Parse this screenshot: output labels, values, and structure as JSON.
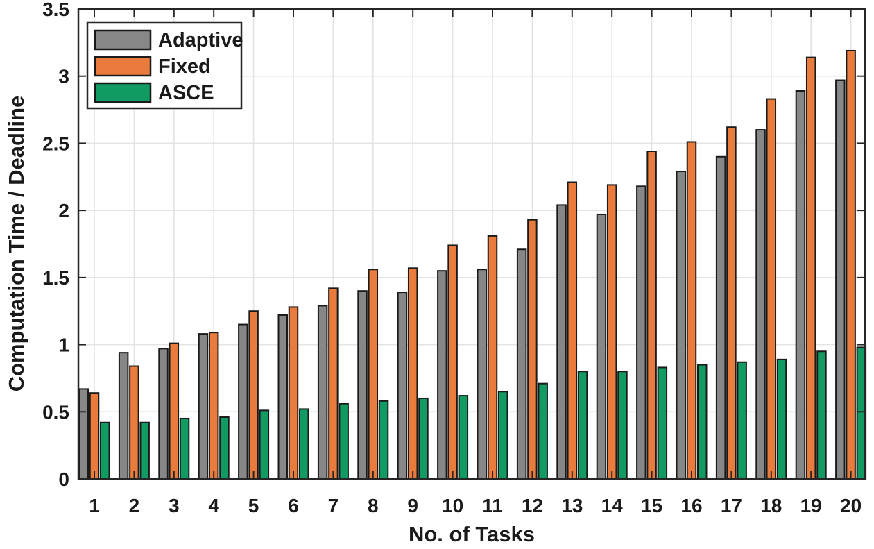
{
  "figure": {
    "background": "#ffffff"
  },
  "chart_data": {
    "type": "bar",
    "title": "",
    "xlabel": "No. of Tasks",
    "ylabel": "Computation Time / Deadline",
    "categories": [
      "1",
      "2",
      "3",
      "4",
      "5",
      "6",
      "7",
      "8",
      "9",
      "10",
      "11",
      "12",
      "13",
      "14",
      "15",
      "16",
      "17",
      "18",
      "19",
      "20"
    ],
    "ylim": [
      0,
      3.5
    ],
    "ytick_step": 0.5,
    "grid": true,
    "legend_position": "top-left",
    "legend_entries": [
      "Adaptive",
      "Fixed",
      "ASCE"
    ],
    "series": [
      {
        "name": "Adaptive",
        "color": "#878787",
        "values": [
          0.67,
          0.94,
          0.97,
          1.08,
          1.15,
          1.22,
          1.29,
          1.4,
          1.39,
          1.55,
          1.56,
          1.71,
          2.04,
          1.97,
          2.18,
          2.29,
          2.4,
          2.6,
          2.89,
          2.97
        ]
      },
      {
        "name": "Fixed",
        "color": "#E97C3C",
        "values": [
          0.64,
          0.84,
          1.01,
          1.09,
          1.25,
          1.28,
          1.42,
          1.56,
          1.57,
          1.74,
          1.81,
          1.93,
          2.21,
          2.19,
          2.44,
          2.51,
          2.62,
          2.83,
          3.14,
          3.19
        ]
      },
      {
        "name": "ASCE",
        "color": "#129A63",
        "values": [
          0.42,
          0.42,
          0.45,
          0.46,
          0.51,
          0.52,
          0.56,
          0.58,
          0.6,
          0.62,
          0.65,
          0.71,
          0.8,
          0.8,
          0.83,
          0.85,
          0.87,
          0.89,
          0.95,
          0.98
        ]
      }
    ],
    "style": {
      "axis_color": "#262626",
      "grid_color": "#e3e3e3",
      "text_color": "#1a1a1a",
      "bar_outline": "#1a1a1a"
    }
  }
}
